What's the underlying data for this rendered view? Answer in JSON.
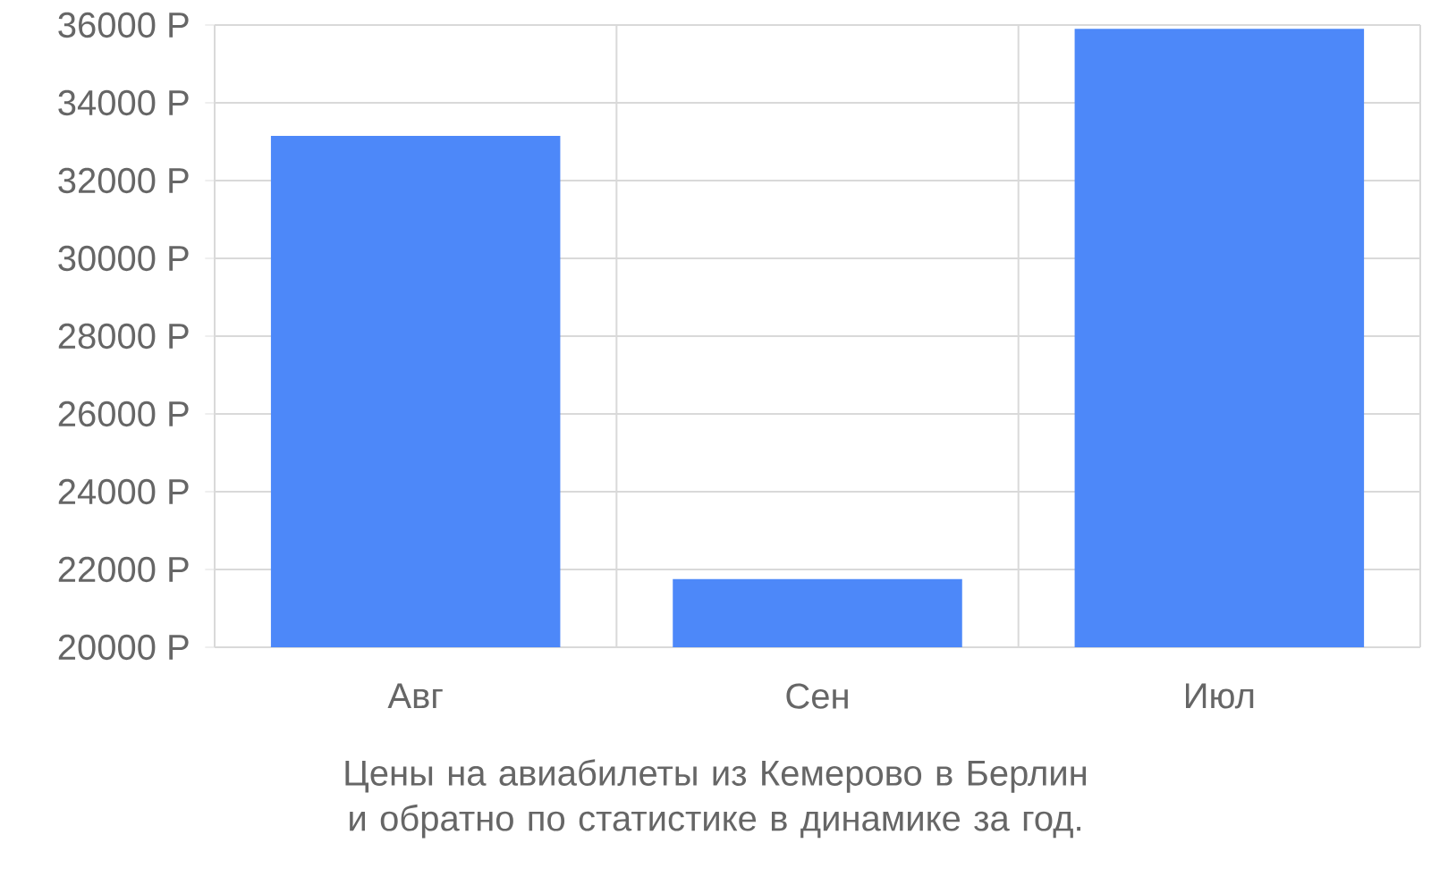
{
  "chart_data": {
    "type": "bar",
    "categories": [
      "Авг",
      "Сен",
      "Июл"
    ],
    "values": [
      33150,
      21750,
      35900
    ],
    "color": "#4d88f9",
    "ylim": [
      20000,
      36000
    ],
    "yticks": [
      {
        "value": 20000,
        "label": "20000 Р"
      },
      {
        "value": 22000,
        "label": "22000 Р"
      },
      {
        "value": 24000,
        "label": "24000 Р"
      },
      {
        "value": 26000,
        "label": "26000 Р"
      },
      {
        "value": 28000,
        "label": "28000 Р"
      },
      {
        "value": 30000,
        "label": "30000 Р"
      },
      {
        "value": 32000,
        "label": "32000 Р"
      },
      {
        "value": 34000,
        "label": "34000 Р"
      },
      {
        "value": 36000,
        "label": "36000 Р"
      }
    ],
    "grid": true,
    "annotations": [
      "Цены на авиабилеты из Кемерово в Берлин и обратно по статистике в динамике за год."
    ]
  }
}
